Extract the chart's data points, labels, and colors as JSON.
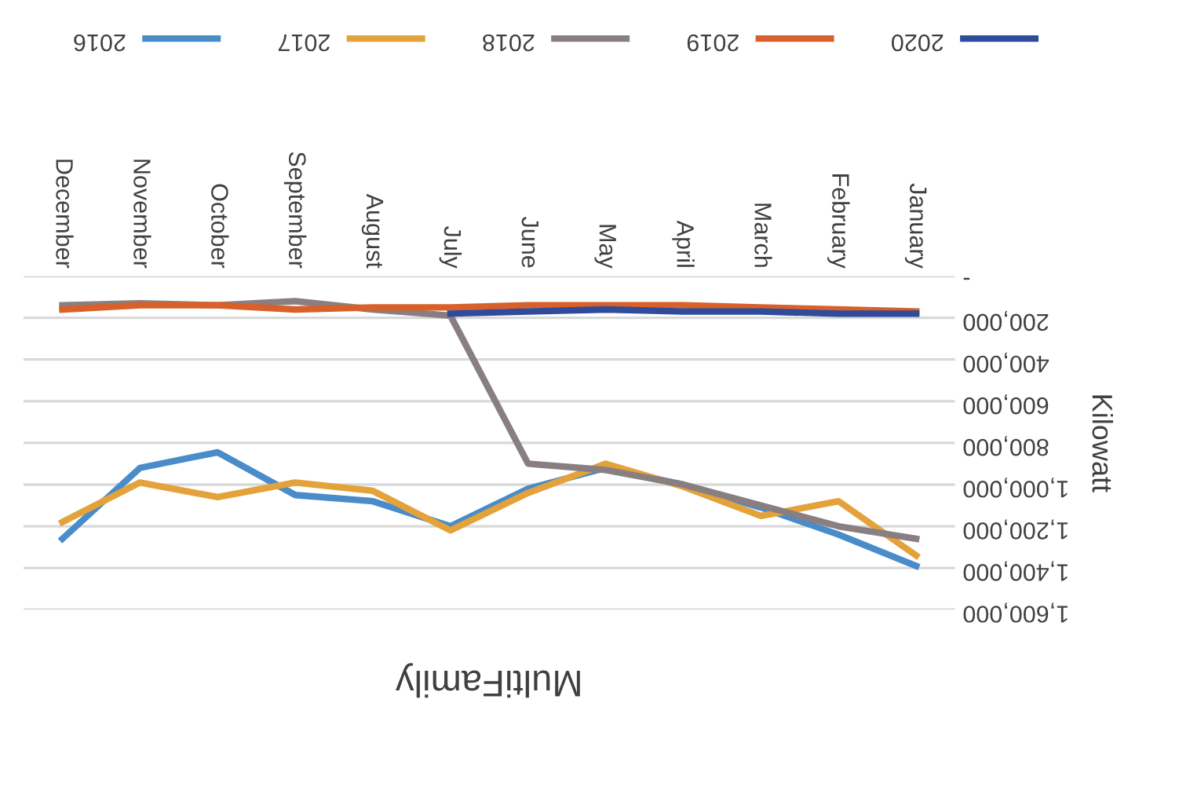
{
  "chart_data": {
    "type": "line",
    "title": "MultiFamily",
    "ylabel": "Kilowatt",
    "categories": [
      "December",
      "November",
      "October",
      "September",
      "August",
      "July",
      "June",
      "May",
      "April",
      "March",
      "February",
      "January"
    ],
    "series": [
      {
        "name": "2016",
        "color": "#4a8bc9",
        "values": [
          1260000,
          920000,
          845000,
          1050000,
          1080000,
          1200000,
          1020000,
          920000,
          1000000,
          1110000,
          1240000,
          1390000
        ]
      },
      {
        "name": "2017",
        "color": "#e3a23a",
        "values": [
          1180000,
          990000,
          1060000,
          990000,
          1030000,
          1220000,
          1040000,
          900000,
          1010000,
          1150000,
          1080000,
          1340000
        ]
      },
      {
        "name": "2018",
        "color": "#8a7f80",
        "values": [
          140000,
          130000,
          140000,
          120000,
          160000,
          190000,
          900000,
          930000,
          1000000,
          1100000,
          1200000,
          1260000
        ]
      },
      {
        "name": "2019",
        "color": "#d8602a",
        "values": [
          160000,
          140000,
          140000,
          160000,
          150000,
          150000,
          140000,
          140000,
          140000,
          150000,
          160000,
          170000
        ]
      },
      {
        "name": "2020",
        "color": "#2f4b9a",
        "values": [
          null,
          null,
          null,
          null,
          null,
          180000,
          170000,
          160000,
          170000,
          170000,
          180000,
          180000
        ]
      }
    ],
    "ylim": [
      1600000,
      0
    ],
    "yticks": [
      {
        "value": 0,
        "label": "-"
      },
      {
        "value": 200000,
        "label": "200,000"
      },
      {
        "value": 400000,
        "label": "400,000"
      },
      {
        "value": 600000,
        "label": "600,000"
      },
      {
        "value": 800000,
        "label": "800,000"
      },
      {
        "value": 1000000,
        "label": "1,000,000"
      },
      {
        "value": 1200000,
        "label": "1,200,000"
      },
      {
        "value": 1400000,
        "label": "1,400,000"
      },
      {
        "value": 1600000,
        "label": "1,600,000"
      }
    ],
    "grid": "y",
    "legend": "top",
    "marker": "none",
    "line_style": "solid"
  }
}
